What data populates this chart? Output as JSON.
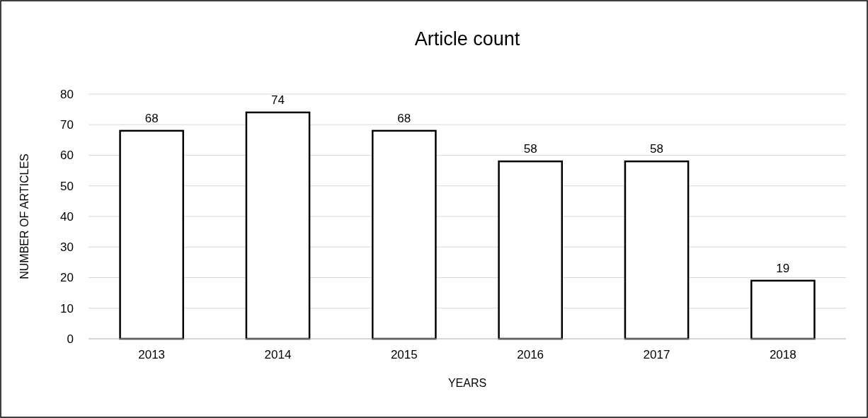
{
  "chart_data": {
    "type": "bar",
    "title": "Article count",
    "xlabel": "YEARS",
    "ylabel": "NUMBER OF ARTICLES",
    "categories": [
      "2013",
      "2014",
      "2015",
      "2016",
      "2017",
      "2018"
    ],
    "values": [
      68,
      74,
      68,
      58,
      58,
      19
    ],
    "color": "#ffffff",
    "ylim": [
      0,
      80
    ],
    "yticks": [
      0,
      10,
      20,
      30,
      40,
      50,
      60,
      70,
      80
    ],
    "grid": "y",
    "data_labels": true
  }
}
